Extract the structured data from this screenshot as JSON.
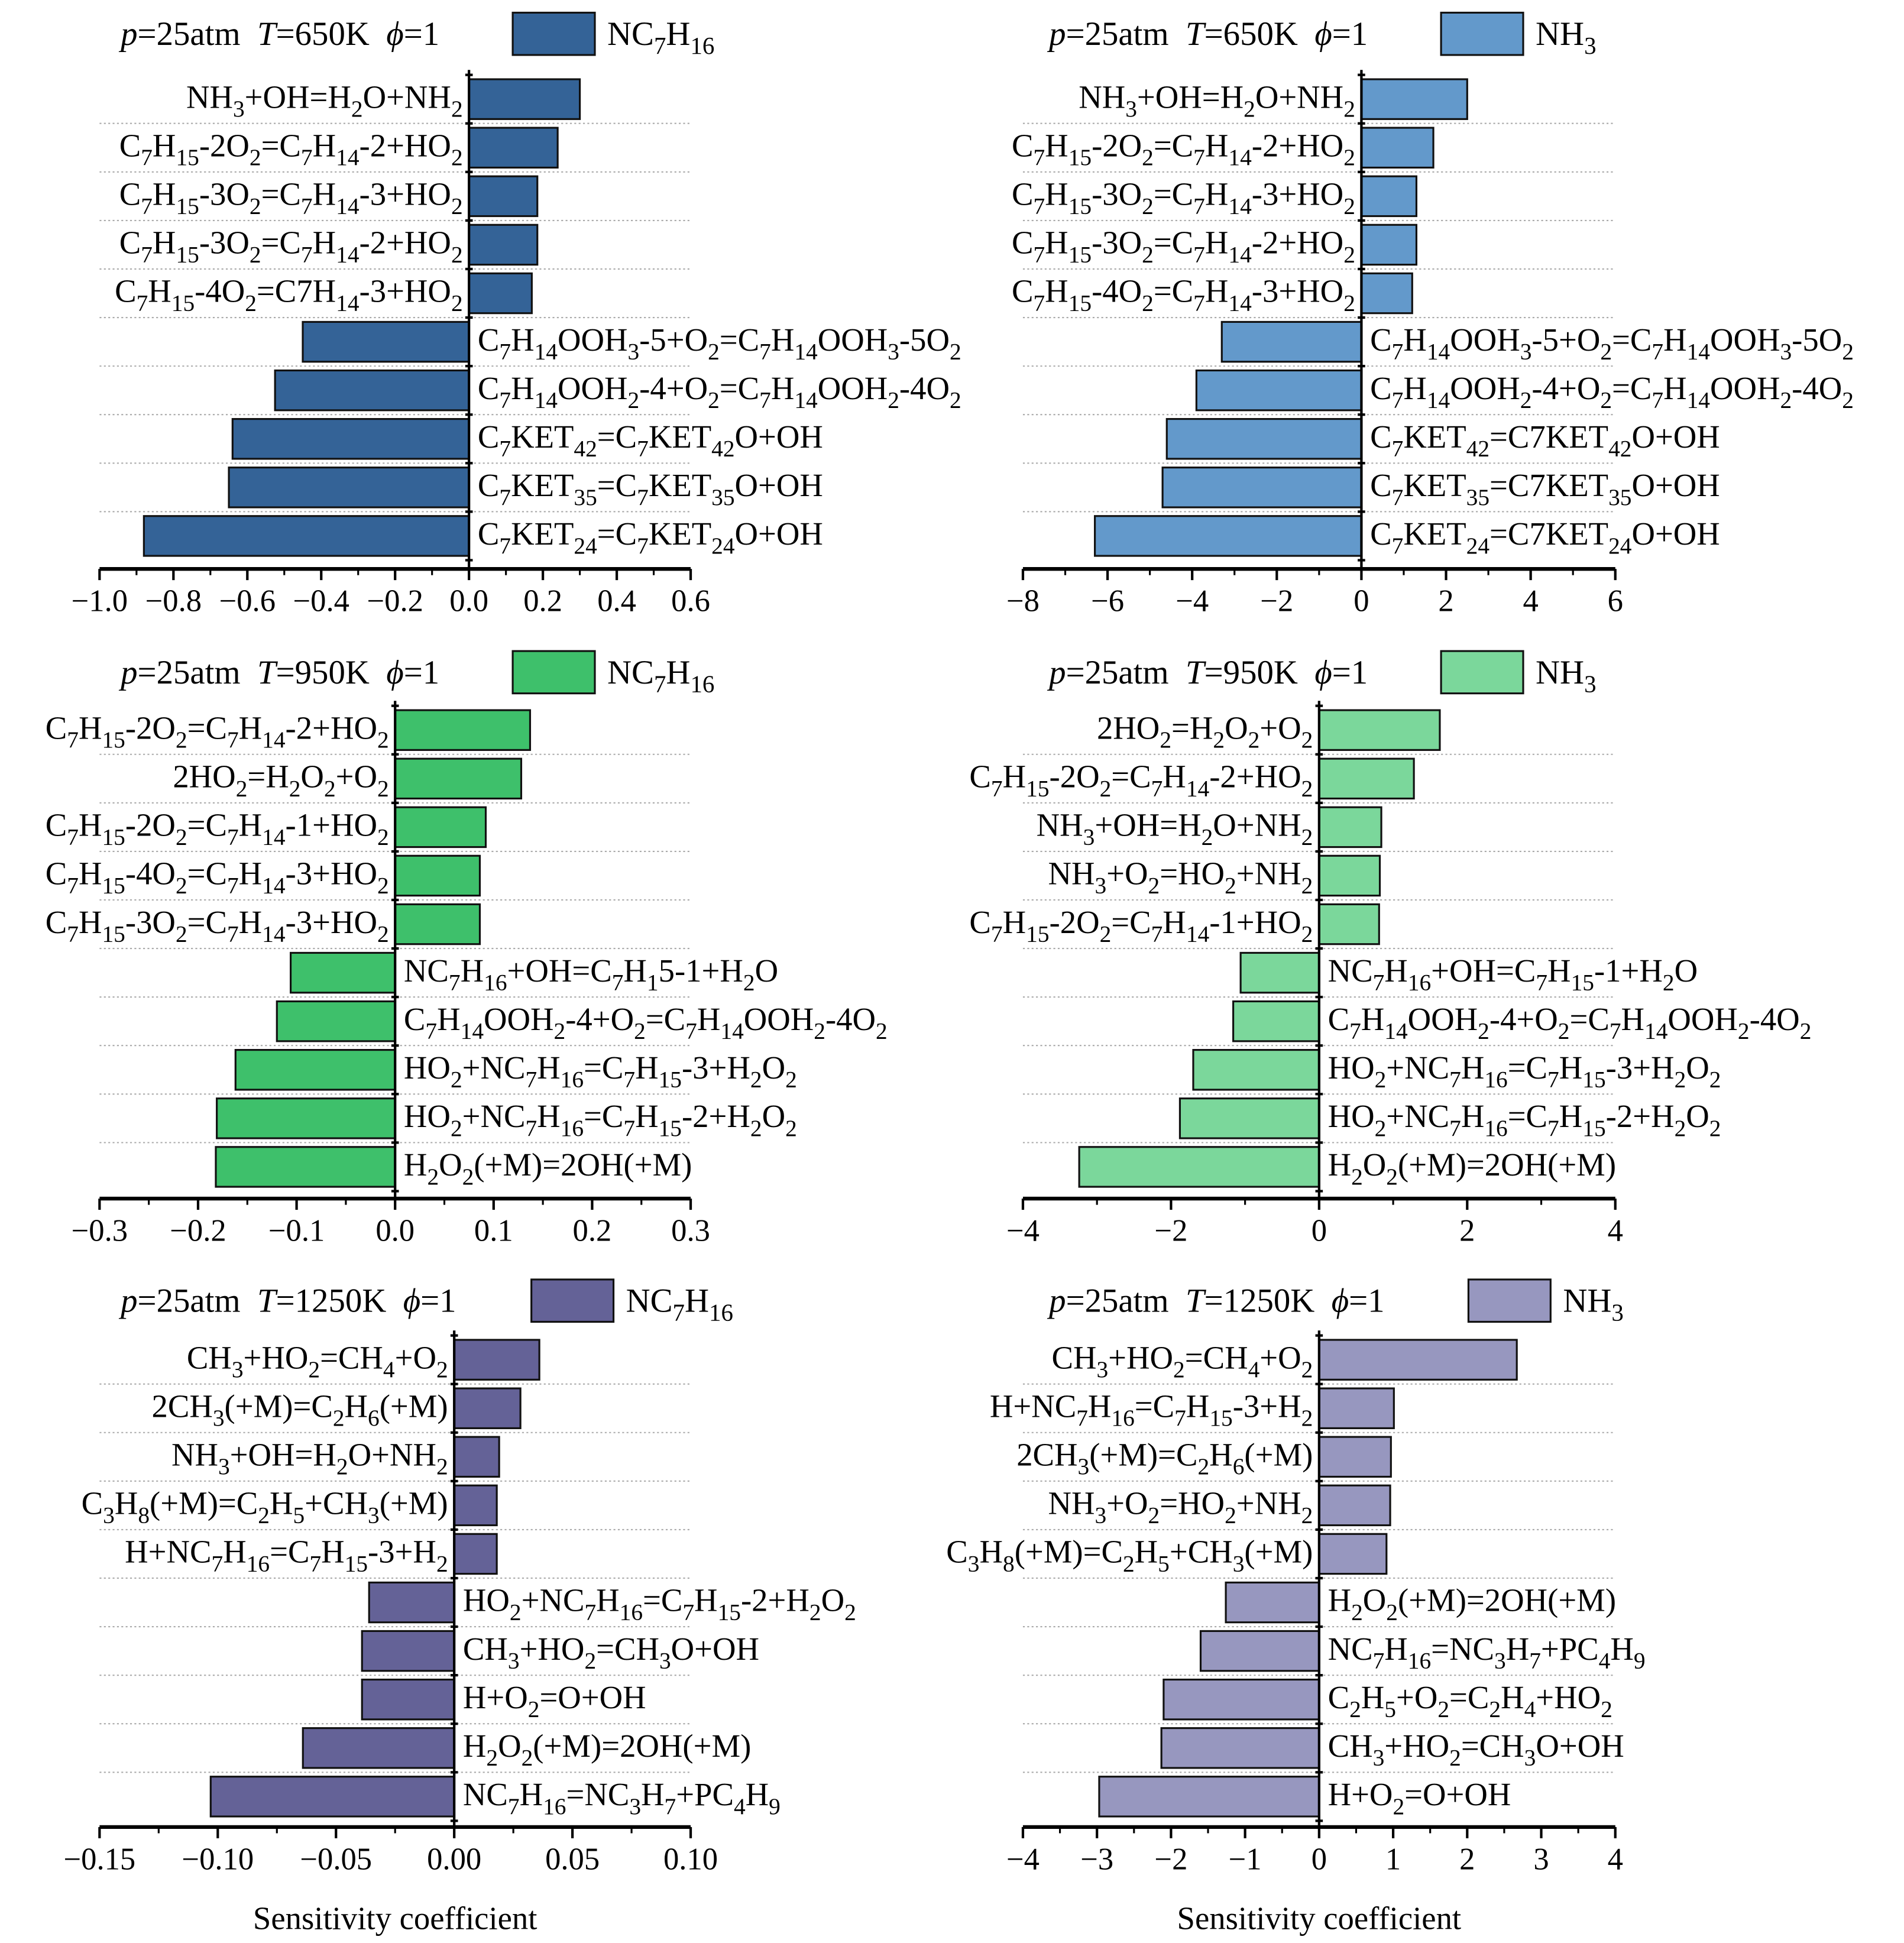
{
  "chart_data": [
    {
      "type": "bar",
      "orientation": "horizontal",
      "title_segments": [
        {
          "t": "p",
          "i": true
        },
        {
          "t": "=25atm  "
        },
        {
          "t": "T",
          "i": true
        },
        {
          "t": "=650K  "
        },
        {
          "t": "ϕ",
          "i": true
        },
        {
          "t": "=1"
        }
      ],
      "legend": "NC_{7}H_{16}",
      "color": "#346397",
      "xlim": [
        -1.0,
        0.6
      ],
      "xticks": [
        "−1.0",
        "−0.8",
        "−0.6",
        "−0.4",
        "−0.2",
        "0.0",
        "0.2",
        "0.4",
        "0.6"
      ],
      "xtick_values": [
        -1.0,
        -0.8,
        -0.6,
        -0.4,
        -0.2,
        0,
        0.2,
        0.4,
        0.6
      ],
      "xlabel": "",
      "categories": [
        "NH_{3}+OH=H_{2}O+NH_{2}",
        "C_{7}H_{15}-2O_{2}=C_{7}H_{14}-2+HO_{2}",
        "C_{7}H_{15}-3O_{2}=C_{7}H_{14}-3+HO_{2}",
        "C_{7}H_{15}-3O_{2}=C_{7}H_{14}-2+HO_{2}",
        "C_{7}H_{15}-4O_{2}=C7H_{14}-3+HO_{2}",
        "C_{7}H_{14}OOH_{3}-5+O_{2}=C_{7}H_{14}OOH_{3}-5O_{2}",
        "C_{7}H_{14}OOH_{2}-4+O_{2}=C_{7}H_{14}OOH_{2}-4O_{2}",
        "C_{7}KET_{42}=C_{7}KET_{42}O+OH",
        "C_{7}KET_{35}=C_{7}KET_{35}O+OH",
        "C_{7}KET_{24}=C_{7}KET_{24}O+OH"
      ],
      "values": [
        0.3,
        0.24,
        0.185,
        0.185,
        0.17,
        -0.45,
        -0.525,
        -0.64,
        -0.65,
        -0.88
      ]
    },
    {
      "type": "bar",
      "orientation": "horizontal",
      "title_segments": [
        {
          "t": "p",
          "i": true
        },
        {
          "t": "=25atm  "
        },
        {
          "t": "T",
          "i": true
        },
        {
          "t": "=650K  "
        },
        {
          "t": "ϕ",
          "i": true
        },
        {
          "t": "=1"
        }
      ],
      "legend": "NH_{3}",
      "color": "#6399cb",
      "xlim": [
        -8,
        6
      ],
      "xticks": [
        "−8",
        "−6",
        "−4",
        "−2",
        "0",
        "2",
        "4",
        "6"
      ],
      "xtick_values": [
        -8,
        -6,
        -4,
        -2,
        0,
        2,
        4,
        6
      ],
      "xlabel": "",
      "categories": [
        "NH_{3}+OH=H_{2}O+NH_{2}",
        "C_{7}H_{15}-2O_{2}=C_{7}H_{14}-2+HO_{2}",
        "C_{7}H_{15}-3O_{2}=C_{7}H_{14}-3+HO_{2}",
        "C_{7}H_{15}-3O_{2}=C_{7}H_{14}-2+HO_{2}",
        "C_{7}H_{15}-4O_{2}=C_{7}H_{14}-3+HO_{2}",
        "C_{7}H_{14}OOH_{3}-5+O_{2}=C_{7}H_{14}OOH_{3}-5O_{2}",
        "C_{7}H_{14}OOH_{2}-4+O_{2}=C_{7}H_{14}OOH_{2}-4O_{2}",
        "C_{7}KET_{42}=C7KET_{42}O+OH",
        "C_{7}KET_{35}=C7KET_{35}O+OH",
        "C_{7}KET_{24}=C7KET_{24}O+OH"
      ],
      "values": [
        2.5,
        1.7,
        1.3,
        1.3,
        1.2,
        -3.3,
        -3.9,
        -4.6,
        -4.7,
        -6.3
      ]
    },
    {
      "type": "bar",
      "orientation": "horizontal",
      "title_segments": [
        {
          "t": "p",
          "i": true
        },
        {
          "t": "=25atm  "
        },
        {
          "t": "T",
          "i": true
        },
        {
          "t": "=950K  "
        },
        {
          "t": "ϕ",
          "i": true
        },
        {
          "t": "=1"
        }
      ],
      "legend": "NC_{7}H_{16}",
      "color": "#3ec06b",
      "xlim": [
        -0.3,
        0.3
      ],
      "xticks": [
        "−0.3",
        "−0.2",
        "−0.1",
        "0.0",
        "0.1",
        "0.2",
        "0.3"
      ],
      "xtick_values": [
        -0.3,
        -0.2,
        -0.1,
        0,
        0.1,
        0.2,
        0.3
      ],
      "xlabel": "",
      "categories": [
        "C_{7}H_{15}-2O_{2}=C_{7}H_{14}-2+HO_{2}",
        "2HO_{2}=H_{2}O_{2}+O_{2}",
        "C_{7}H_{15}-2O_{2}=C_{7}H_{14}-1+HO_{2}",
        "C_{7}H_{15}-4O_{2}=C_{7}H_{14}-3+HO_{2}",
        "C_{7}H_{15}-3O_{2}=C_{7}H_{14}-3+HO_{2}",
        "NC_{7}H_{16}+OH=C_{7}H_{1}5-1+H_{2}O",
        "C_{7}H_{14}OOH_{2}-4+O_{2}=C_{7}H_{14}OOH_{2}-4O_{2}",
        "HO_{2}+NC_{7}H_{16}=C_{7}H_{15}-3+H_{2}O_{2}",
        "HO_{2}+NC_{7}H_{16}=C_{7}H_{15}-2+H_{2}O_{2}",
        "H_{2}O_{2}(+M)=2OH(+M)"
      ],
      "values": [
        0.137,
        0.128,
        0.092,
        0.086,
        0.086,
        -0.106,
        -0.12,
        -0.162,
        -0.181,
        -0.182
      ]
    },
    {
      "type": "bar",
      "orientation": "horizontal",
      "title_segments": [
        {
          "t": "p",
          "i": true
        },
        {
          "t": "=25atm  "
        },
        {
          "t": "T",
          "i": true
        },
        {
          "t": "=950K  "
        },
        {
          "t": "ϕ",
          "i": true
        },
        {
          "t": "=1"
        }
      ],
      "legend": "NH_{3}",
      "color": "#7bd79b",
      "xlim": [
        -4,
        4
      ],
      "xticks": [
        "−4",
        "−2",
        "0",
        "2",
        "4"
      ],
      "xtick_values": [
        -4,
        -2,
        0,
        2,
        4
      ],
      "xlabel": "",
      "categories": [
        "2HO_{2}=H_{2}O_{2}+O_{2}",
        "C_{7}H_{15}-2O_{2}=C_{7}H_{14}-2+HO_{2}",
        "NH_{3}+OH=H_{2}O+NH_{2}",
        "NH_{3}+O_{2}=HO_{2}+NH_{2}",
        "C_{7}H_{15}-2O_{2}=C_{7}H_{14}-1+HO_{2}",
        "NC_{7}H_{16}+OH=C_{7}H_{15}-1+H_{2}O",
        "C_{7}H_{14}OOH_{2}-4+O_{2}=C_{7}H_{14}OOH_{2}-4O_{2}",
        "HO_{2}+NC_{7}H_{16}=C_{7}H_{15}-3+H_{2}O_{2}",
        "HO_{2}+NC_{7}H_{16}=C_{7}H_{15}-2+H_{2}O_{2}",
        "H_{2}O_{2}(+M)=2OH(+M)"
      ],
      "values": [
        1.63,
        1.28,
        0.84,
        0.82,
        0.81,
        -1.06,
        -1.16,
        -1.7,
        -1.88,
        -3.24
      ]
    },
    {
      "type": "bar",
      "orientation": "horizontal",
      "title_segments": [
        {
          "t": "p",
          "i": true
        },
        {
          "t": "=25atm  "
        },
        {
          "t": "T",
          "i": true
        },
        {
          "t": "=1250K  "
        },
        {
          "t": "ϕ",
          "i": true
        },
        {
          "t": "=1"
        }
      ],
      "legend": "NC_{7}H_{16}",
      "color": "#646297",
      "xlim": [
        -0.15,
        0.1
      ],
      "xticks": [
        "−0.15",
        "−0.10",
        "−0.05",
        "0.00",
        "0.05",
        "0.10"
      ],
      "xtick_values": [
        -0.15,
        -0.1,
        -0.05,
        0,
        0.05,
        0.1
      ],
      "xlabel": "Sensitivity coefficient",
      "categories": [
        "CH_{3}+HO_{2}=CH_{4}+O_{2}",
        "2CH_{3}(+M)=C_{2}H_{6}(+M)",
        "NH_{3}+OH=H_{2}O+NH_{2}",
        "C_{3}H_{8}(+M)=C_{2}H_{5}+CH_{3}(+M)",
        "H+NC_{7}H_{16}=C_{7}H_{15}-3+H_{2}",
        "HO_{2}+NC_{7}H_{16}=C_{7}H_{15}-2+H_{2}O_{2}",
        "CH_{3}+HO_{2}=CH_{3}O+OH",
        "H+O_{2}=O+OH",
        "H_{2}O_{2}(+M)=2OH(+M)",
        "NC_{7}H_{16}=NC_{3}H_{7}+PC_{4}H_{9}"
      ],
      "values": [
        0.036,
        0.028,
        0.019,
        0.018,
        0.018,
        -0.036,
        -0.039,
        -0.039,
        -0.064,
        -0.103
      ]
    },
    {
      "type": "bar",
      "orientation": "horizontal",
      "title_segments": [
        {
          "t": "p",
          "i": true
        },
        {
          "t": "=25atm  "
        },
        {
          "t": "T",
          "i": true
        },
        {
          "t": "=1250K  "
        },
        {
          "t": "ϕ",
          "i": true
        },
        {
          "t": "=1"
        }
      ],
      "legend": "NH_{3}",
      "color": "#9797bf",
      "xlim": [
        -4,
        4
      ],
      "xticks": [
        "−4",
        "−3",
        "−2",
        "−1",
        "0",
        "1",
        "2",
        "3",
        "4"
      ],
      "xtick_values": [
        -4,
        -3,
        -2,
        -1,
        0,
        1,
        2,
        3,
        4
      ],
      "xlabel": "Sensitivity coefficient",
      "categories": [
        "CH_{3}+HO_{2}=CH_{4}+O_{2}",
        "H+NC_{7}H_{16}=C_{7}H_{15}-3+H_{2}",
        "2CH_{3}(+M)=C_{2}H_{6}(+M)",
        "NH_{3}+O_{2}=HO_{2}+NH_{2}",
        "C_{3}H_{8}(+M)=C_{2}H_{5}+CH_{3}(+M)",
        "H_{2}O_{2}(+M)=2OH(+M)",
        "NC_{7}H_{16}=NC_{3}H_{7}+PC_{4}H_{9}",
        "C_{2}H_{5}+O_{2}=C_{2}H_{4}+HO_{2}",
        "CH_{3}+HO_{2}=CH_{3}O+OH",
        "H+O_{2}=O+OH"
      ],
      "values": [
        2.67,
        1.01,
        0.97,
        0.96,
        0.91,
        -1.26,
        -1.6,
        -2.1,
        -2.13,
        -2.97
      ]
    }
  ]
}
